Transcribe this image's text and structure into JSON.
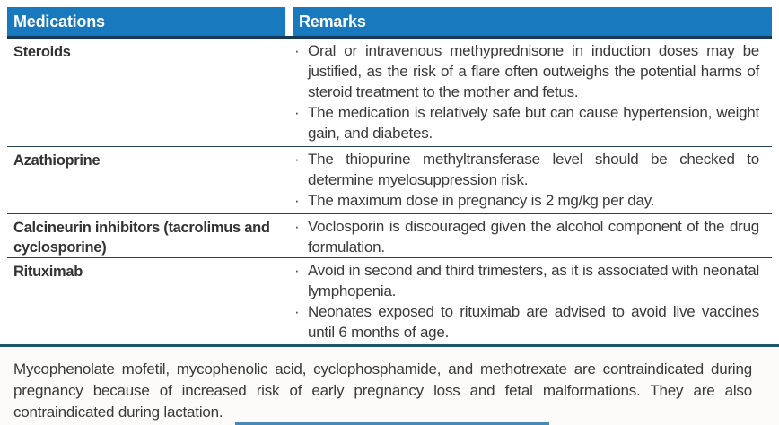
{
  "glyphs": {
    "bullet": "·"
  },
  "colors": {
    "header_bg": "#1879be",
    "header_text": "#ffffff",
    "header_rule": "#16395a",
    "row_rule": "#24425e",
    "footnote_rule": "#20566a",
    "body_text": "#3a3a3a"
  },
  "table": {
    "columns": [
      {
        "label": "Medications"
      },
      {
        "label": "Remarks"
      }
    ],
    "rows": [
      {
        "medication": "Steroids",
        "remarks": [
          "Oral or intravenous methyprednisone in induction doses may be justified, as the risk of a flare often outweighs the potential harms of steroid treatment to the mother and fetus.",
          "The medication is relatively safe but can cause hypertension, weight gain, and diabetes."
        ]
      },
      {
        "medication": "Azathioprine",
        "remarks": [
          "The thiopurine methyltransferase level should be checked to determine myelosuppression risk.",
          "The maximum dose in pregnancy is 2 mg/kg per day."
        ]
      },
      {
        "medication": "Calcineurin inhibitors (tacrolimus and cyclosporine)",
        "remarks": [
          "Voclosporin is discouraged given the alcohol component of the drug formulation."
        ]
      },
      {
        "medication": "Rituximab",
        "remarks": [
          "Avoid in second and third trimesters, as it is associated with neonatal lymphopenia.",
          "Neonates exposed to rituximab are advised to avoid live vaccines until 6 months of age."
        ]
      }
    ],
    "footnote": "Mycophenolate mofetil, mycophenolic acid, cyclophosphamide, and methotrexate are contraindicated during pregnancy because of increased risk of early pregnancy loss and fetal malformations. They are also contraindicated during lactation."
  }
}
